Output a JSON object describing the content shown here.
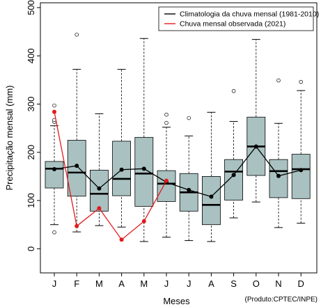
{
  "chart_data": {
    "type": "boxplot",
    "xlabel": "Meses",
    "ylabel": "Precipitação mensal (mm)",
    "credit": "(Produto:CPTEC/INPE)",
    "ylim": [
      -50,
      510
    ],
    "yticks": [
      0,
      100,
      200,
      300,
      400,
      500
    ],
    "categories": [
      "J",
      "F",
      "M",
      "A",
      "M",
      "J",
      "J",
      "A",
      "S",
      "O",
      "N",
      "D"
    ],
    "boxes": [
      {
        "whisker_low": 50,
        "q1": 126,
        "median": 166,
        "q3": 181,
        "whisker_high": 255,
        "outliers": [
          34,
          263,
          267,
          297
        ]
      },
      {
        "whisker_low": 35,
        "q1": 109,
        "median": 158,
        "q3": 225,
        "whisker_high": 372,
        "outliers": [
          444
        ]
      },
      {
        "whisker_low": 48,
        "q1": 78,
        "median": 114,
        "q3": 163,
        "whisker_high": 280,
        "outliers": []
      },
      {
        "whisker_low": 45,
        "q1": 110,
        "median": 145,
        "q3": 223,
        "whisker_high": 372,
        "outliers": []
      },
      {
        "whisker_low": 15,
        "q1": 88,
        "median": 156,
        "q3": 231,
        "whisker_high": 436,
        "outliers": []
      },
      {
        "whisker_low": 24,
        "q1": 98,
        "median": 135,
        "q3": 162,
        "whisker_high": 252,
        "outliers": [
          261,
          278
        ]
      },
      {
        "whisker_low": 17,
        "q1": 78,
        "median": 117,
        "q3": 156,
        "whisker_high": 234,
        "outliers": [
          271
        ]
      },
      {
        "whisker_low": 15,
        "q1": 50,
        "median": 91,
        "q3": 150,
        "whisker_high": 283,
        "outliers": []
      },
      {
        "whisker_low": 64,
        "q1": 101,
        "median": 160,
        "q3": 185,
        "whisker_high": 264,
        "outliers": [
          327
        ]
      },
      {
        "whisker_low": 97,
        "q1": 152,
        "median": 212,
        "q3": 273,
        "whisker_high": 434,
        "outliers": []
      },
      {
        "whisker_low": 44,
        "q1": 106,
        "median": 161,
        "q3": 185,
        "whisker_high": 260,
        "outliers": [
          349
        ]
      },
      {
        "whisker_low": 53,
        "q1": 104,
        "median": 165,
        "q3": 196,
        "whisker_high": 328,
        "outliers": [
          346
        ]
      }
    ],
    "series": [
      {
        "name": "Climatologia da chuva mensal (1981-2010)",
        "color": "#000000",
        "values": [
          165,
          172,
          125,
          164,
          166,
          138,
          122,
          108,
          153,
          212,
          151,
          163
        ]
      },
      {
        "name": "Chuva mensal observada (2021)",
        "color": "#e31a1c",
        "values": [
          284,
          47,
          84,
          19,
          57,
          141,
          null,
          null,
          null,
          null,
          null,
          null
        ]
      }
    ],
    "box_fill": "#a9c1c1",
    "outlier_style": "open-circle",
    "grid": false,
    "legend_position": "top-right"
  }
}
